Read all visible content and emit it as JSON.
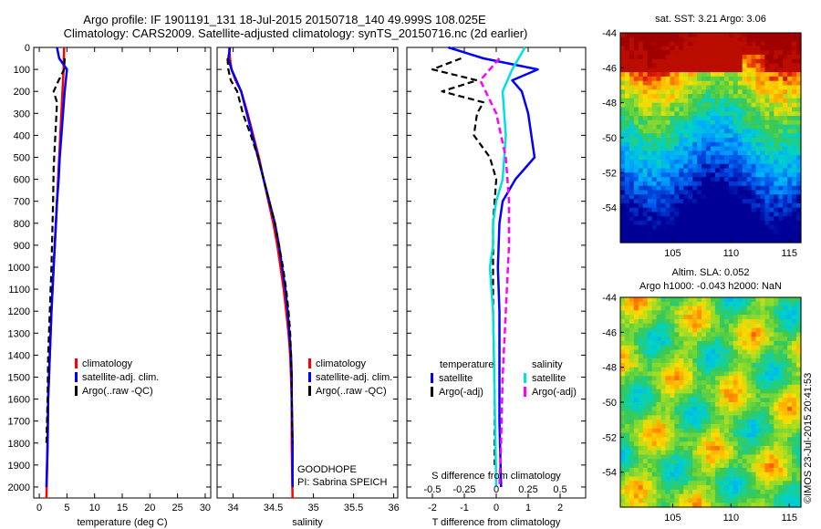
{
  "header": {
    "title_line1": "Argo profile: IF 1901191_131 18-Jul-2015 20150718_140 49.999S 108.025E",
    "title_line2": "Climatology: CARS2009. Satellite-adjusted climatology: synTS_20150716.nc (2d earlier)"
  },
  "colors": {
    "climatology": "#ff0000",
    "satellite": "#0000ff",
    "argo": "#000000",
    "cyan": "#00e0e0",
    "magenta": "#ff00ff"
  },
  "chart_data": [
    {
      "type": "line",
      "id": "temperature",
      "xlabel": "temperature (deg C)",
      "ylabel": "",
      "xlim": [
        -1,
        31
      ],
      "ylim": [
        2050,
        0
      ],
      "xticks": [
        0,
        5,
        10,
        15,
        20,
        25,
        30
      ],
      "yticks": [
        0,
        100,
        200,
        300,
        400,
        500,
        600,
        700,
        800,
        900,
        1000,
        1100,
        1200,
        1300,
        1400,
        1500,
        1600,
        1700,
        1800,
        1900,
        2000
      ],
      "legend": [
        "climatology",
        "satellite-adj. clim.",
        "Argo(..raw -QC)"
      ],
      "series": [
        {
          "name": "climatology",
          "style": "red",
          "x": [
            4.5,
            4.4,
            4.2,
            4.0,
            3.8,
            3.6,
            3.4,
            3.2,
            3.0,
            2.6,
            2.2,
            1.9,
            1.6,
            1.5,
            1.3
          ],
          "y": [
            0,
            100,
            200,
            300,
            400,
            500,
            600,
            700,
            800,
            1000,
            1200,
            1400,
            1600,
            1800,
            2050
          ]
        },
        {
          "name": "satellite-adj. clim.",
          "style": "blue",
          "x": [
            3.2,
            3.6,
            5.0,
            4.6,
            4.3,
            4.0,
            3.7,
            3.5,
            3.2,
            3.0,
            2.6,
            2.2,
            1.9,
            1.6,
            1.5,
            1.3
          ],
          "y": [
            0,
            50,
            100,
            200,
            300,
            400,
            500,
            600,
            700,
            800,
            1000,
            1200,
            1400,
            1600,
            1800,
            2000
          ]
        },
        {
          "name": "Argo(..raw -QC)",
          "style": "black-dash",
          "x": [
            4.6,
            4.5,
            3.5,
            2.6,
            3.2,
            3.0,
            2.8,
            2.6,
            2.5,
            2.2,
            1.9,
            1.6,
            1.5,
            1.3
          ],
          "y": [
            50,
            100,
            150,
            200,
            250,
            350,
            450,
            550,
            700,
            1000,
            1200,
            1400,
            1600,
            1800
          ]
        }
      ]
    },
    {
      "type": "line",
      "id": "salinity",
      "xlabel": "salinity",
      "annotations": [
        "GOODHOPE",
        "PI: Sabrina SPEICH"
      ],
      "xlim": [
        33.8,
        36.05
      ],
      "ylim": [
        2050,
        0
      ],
      "xticks": [
        34,
        34.5,
        35,
        35.5,
        36
      ],
      "xticklabels": [
        "34",
        "34.5",
        "35",
        "35.5",
        "36"
      ],
      "legend": [
        "climatology",
        "satellite-adj. clim.",
        "Argo(..raw -QC)"
      ],
      "series": [
        {
          "name": "climatology",
          "style": "red",
          "x": [
            33.95,
            33.96,
            33.98,
            34.03,
            34.1,
            34.18,
            34.25,
            34.32,
            34.38,
            34.44,
            34.5,
            34.55,
            34.59,
            34.63,
            34.66,
            34.69,
            34.71,
            34.72,
            34.73,
            34.73,
            34.74
          ],
          "y": [
            0,
            50,
            100,
            150,
            200,
            300,
            400,
            500,
            600,
            700,
            800,
            900,
            1000,
            1100,
            1200,
            1300,
            1400,
            1500,
            1600,
            1800,
            2050
          ]
        },
        {
          "name": "satellite-adj. clim.",
          "style": "blue",
          "x": [
            33.96,
            33.94,
            33.98,
            34.04,
            34.1,
            34.17,
            34.24,
            34.31,
            34.38,
            34.45,
            34.52,
            34.57,
            34.61,
            34.65,
            34.68,
            34.7,
            34.72,
            34.73,
            34.73,
            34.74,
            34.74
          ],
          "y": [
            0,
            50,
            100,
            150,
            200,
            300,
            400,
            500,
            600,
            700,
            800,
            900,
            1000,
            1100,
            1200,
            1300,
            1400,
            1500,
            1600,
            1800,
            2000
          ]
        },
        {
          "name": "Argo(..raw -QC)",
          "style": "black-dash",
          "x": [
            33.93,
            33.94,
            33.97,
            34.05,
            34.12,
            34.22,
            34.31,
            34.38,
            34.45,
            34.52,
            34.57,
            34.62,
            34.66,
            34.69,
            34.71,
            34.72,
            34.73,
            34.73,
            34.74
          ],
          "y": [
            50,
            100,
            150,
            200,
            300,
            400,
            500,
            600,
            700,
            800,
            900,
            1000,
            1100,
            1200,
            1300,
            1400,
            1500,
            1600,
            1800
          ]
        }
      ]
    },
    {
      "type": "line",
      "id": "differences",
      "xlabel": "T difference from climatology",
      "x2label": "S difference from climatology",
      "xlim": [
        -2.8,
        2.8
      ],
      "ylim": [
        2050,
        0
      ],
      "xticks": [
        -2,
        -1,
        0,
        1,
        2
      ],
      "x2ticks": [
        -0.5,
        -0.25,
        0,
        0.25,
        0.5
      ],
      "x2ticklabels": [
        "-0.5",
        "-0.25",
        "0",
        "0.25",
        "0.5"
      ],
      "legend_temperature": {
        "title": "temperature",
        "items": [
          "satellite",
          "Argo(-adj)"
        ]
      },
      "legend_salinity": {
        "title": "salinity",
        "items": [
          "satellite",
          "Argo(-adj)"
        ]
      },
      "series": [
        {
          "name": "temperature satellite",
          "style": "blue",
          "x": [
            -1.5,
            -0.4,
            1.3,
            0.5,
            0.8,
            1.0,
            1.1,
            1.2,
            0.6,
            0.2,
            0.1,
            0.05,
            0.1,
            0.1,
            0.1,
            0.15
          ],
          "y": [
            0,
            50,
            100,
            150,
            200,
            300,
            400,
            500,
            600,
            700,
            800,
            1000,
            1200,
            1400,
            1700,
            2000
          ]
        },
        {
          "name": "temperature Argo(-adj)",
          "style": "black-dash",
          "x": [
            -1.1,
            -2.0,
            -0.6,
            -1.7,
            -0.4,
            -0.6,
            -0.7,
            -0.2,
            0.0,
            -0.1,
            -0.1,
            -0.05,
            -0.05
          ],
          "y": [
            50,
            100,
            150,
            200,
            250,
            300,
            400,
            500,
            600,
            800,
            1200,
            1600,
            1900
          ]
        },
        {
          "name": "salinity satellite",
          "style": "cyan",
          "x": [
            0.9,
            0.5,
            0.2,
            0.3,
            0.2,
            0.0,
            -0.1,
            -0.1,
            -0.2,
            -0.1,
            -0.05,
            0.0
          ],
          "y": [
            0,
            100,
            200,
            400,
            600,
            700,
            800,
            900,
            1000,
            1200,
            1600,
            2000
          ]
        },
        {
          "name": "salinity Argo(-adj)",
          "style": "magenta-dash",
          "x": [
            0.1,
            -0.5,
            0.0,
            0.3,
            0.4,
            0.4,
            0.3,
            0.2,
            0.15,
            0.1
          ],
          "y": [
            50,
            150,
            300,
            500,
            700,
            900,
            1200,
            1500,
            1800,
            2000
          ]
        }
      ]
    },
    {
      "type": "heatmap",
      "id": "sst-map",
      "title": "sat. SST: 3.21  Argo: 3.06",
      "xlim": [
        100.5,
        116
      ],
      "ylim": [
        -56,
        -44
      ],
      "xticks": [
        105,
        110,
        115
      ],
      "yticks": [
        -44,
        -46,
        -48,
        -50,
        -52,
        -54
      ]
    },
    {
      "type": "heatmap",
      "id": "sla-map",
      "title_line1": "Altim. SLA: 0.052",
      "title_line2": "Argo h1000: -0.043 h2000: NaN",
      "xlim": [
        100.5,
        116
      ],
      "ylim": [
        -56,
        -44
      ],
      "xticks": [
        105,
        110,
        115
      ],
      "yticks": [
        -44,
        -46,
        -48,
        -50,
        -52,
        -54
      ]
    }
  ],
  "credit": "©IMOS 23-Jul-2015 20:41:53"
}
